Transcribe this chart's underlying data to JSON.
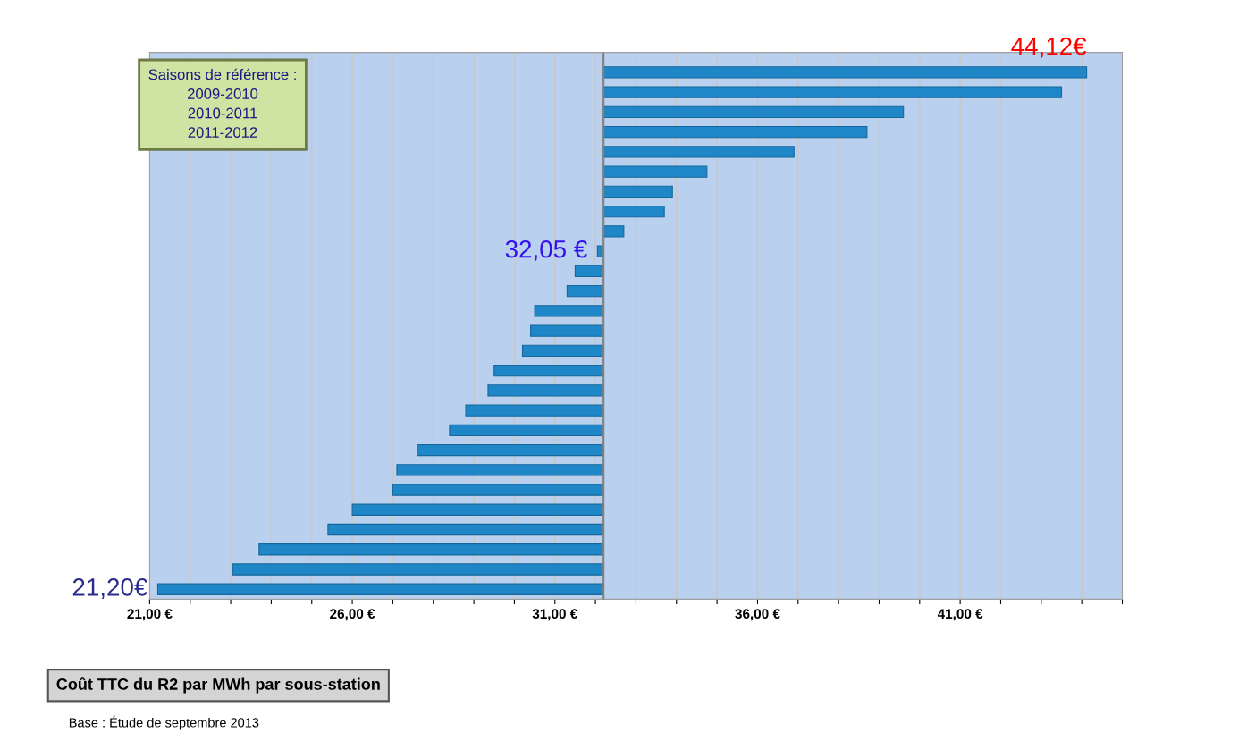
{
  "chart_data": {
    "type": "bar",
    "orientation": "horizontal",
    "title": "Coût TTC du R2 par MWh par sous-station",
    "annotations": [
      "Saisons de référence :\n2009-2010\n2010-2011\n2011-2012",
      "Base : Étude de septembre 2013"
    ],
    "categories": [
      null,
      null,
      null,
      null,
      null,
      null,
      null,
      null,
      null,
      null,
      null,
      null,
      null,
      null,
      null,
      null,
      null,
      null,
      null,
      null,
      null,
      null,
      null,
      null,
      null,
      null,
      null
    ],
    "base": [
      32.2,
      32.2,
      32.2,
      32.2,
      32.2,
      32.2,
      32.2,
      32.2,
      32.2,
      32.2,
      32.2,
      32.2,
      32.2,
      32.2,
      32.2,
      32.2,
      32.2,
      32.2,
      32.2,
      32.2,
      32.2,
      32.2,
      32.2,
      32.2,
      32.2,
      32.2,
      32.2
    ],
    "values": [
      11.92,
      11.3,
      7.4,
      6.5,
      4.7,
      2.55,
      1.7,
      1.5,
      0.5,
      -0.15,
      -0.7,
      -0.9,
      -1.7,
      -1.8,
      -2.0,
      -2.7,
      -2.85,
      -3.4,
      -3.8,
      -4.6,
      -5.1,
      -5.2,
      -6.2,
      -6.8,
      -8.5,
      -9.15,
      -11.0
    ],
    "value_labels": [
      "44,12€",
      null,
      null,
      null,
      null,
      null,
      null,
      null,
      null,
      "32,05 €",
      null,
      null,
      null,
      null,
      null,
      null,
      null,
      null,
      null,
      null,
      null,
      null,
      null,
      null,
      null,
      null,
      "21,20€"
    ],
    "color": "#1f86c8",
    "ref_lines": [
      {
        "axis": "x",
        "value": 32.2,
        "color": "#808080"
      }
    ],
    "xlim": [
      21,
      45
    ],
    "xticks": [
      {
        "value": 21,
        "label": "21,00 €"
      },
      {
        "value": 22,
        "label": null
      },
      {
        "value": 23,
        "label": null
      },
      {
        "value": 24,
        "label": null
      },
      {
        "value": 25,
        "label": null
      },
      {
        "value": 26,
        "label": "26,00 €"
      },
      {
        "value": 27,
        "label": null
      },
      {
        "value": 28,
        "label": null
      },
      {
        "value": 29,
        "label": null
      },
      {
        "value": 30,
        "label": null
      },
      {
        "value": 31,
        "label": "31,00 €"
      },
      {
        "value": 32,
        "label": null
      },
      {
        "value": 33,
        "label": null
      },
      {
        "value": 34,
        "label": null
      },
      {
        "value": 35,
        "label": null
      },
      {
        "value": 36,
        "label": "36,00 €"
      },
      {
        "value": 37,
        "label": null
      },
      {
        "value": 38,
        "label": null
      },
      {
        "value": 39,
        "label": null
      },
      {
        "value": 40,
        "label": null
      },
      {
        "value": 41,
        "label": "41,00 €"
      },
      {
        "value": 42,
        "label": null
      },
      {
        "value": 43,
        "label": null
      },
      {
        "value": 44,
        "label": null
      },
      {
        "value": 45,
        "label": null
      }
    ],
    "grid": "x",
    "tick_labels": "x",
    "legend": false
  }
}
